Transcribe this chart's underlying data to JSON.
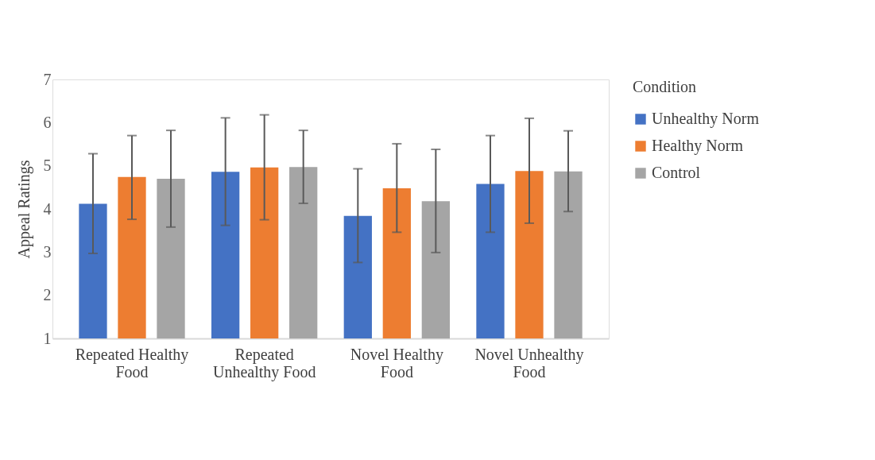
{
  "chart_data": {
    "type": "bar",
    "ylabel": "Appeal Ratings",
    "legend_title": "Condition",
    "legend": "right",
    "grid": false,
    "categories": [
      "Repeated Healthy Food",
      "Repeated Unhealthy Food",
      "Novel Healthy Food",
      "Novel Unhealthy Food"
    ],
    "ylim": [
      1,
      7
    ],
    "yticks": [
      1,
      2,
      3,
      4,
      5,
      6,
      7
    ],
    "series": [
      {
        "name": "Unhealthy Norm",
        "color": "#4472c4",
        "values": [
          4.12,
          4.86,
          3.84,
          4.58
        ],
        "errors": [
          [
            2.97,
            5.28
          ],
          [
            3.62,
            6.11
          ],
          [
            2.76,
            4.93
          ],
          [
            3.46,
            5.7
          ]
        ]
      },
      {
        "name": "Healthy Norm",
        "color": "#ed7d31",
        "values": [
          4.74,
          4.96,
          4.48,
          4.88
        ],
        "errors": [
          [
            3.76,
            5.7
          ],
          [
            3.75,
            6.18
          ],
          [
            3.46,
            5.51
          ],
          [
            3.67,
            6.1
          ]
        ]
      },
      {
        "name": "Control",
        "color": "#a5a5a5",
        "values": [
          4.7,
          4.97,
          4.18,
          4.87
        ],
        "errors": [
          [
            3.58,
            5.82
          ],
          [
            4.13,
            5.82
          ],
          [
            2.99,
            5.38
          ],
          [
            3.94,
            5.81
          ]
        ]
      }
    ]
  }
}
